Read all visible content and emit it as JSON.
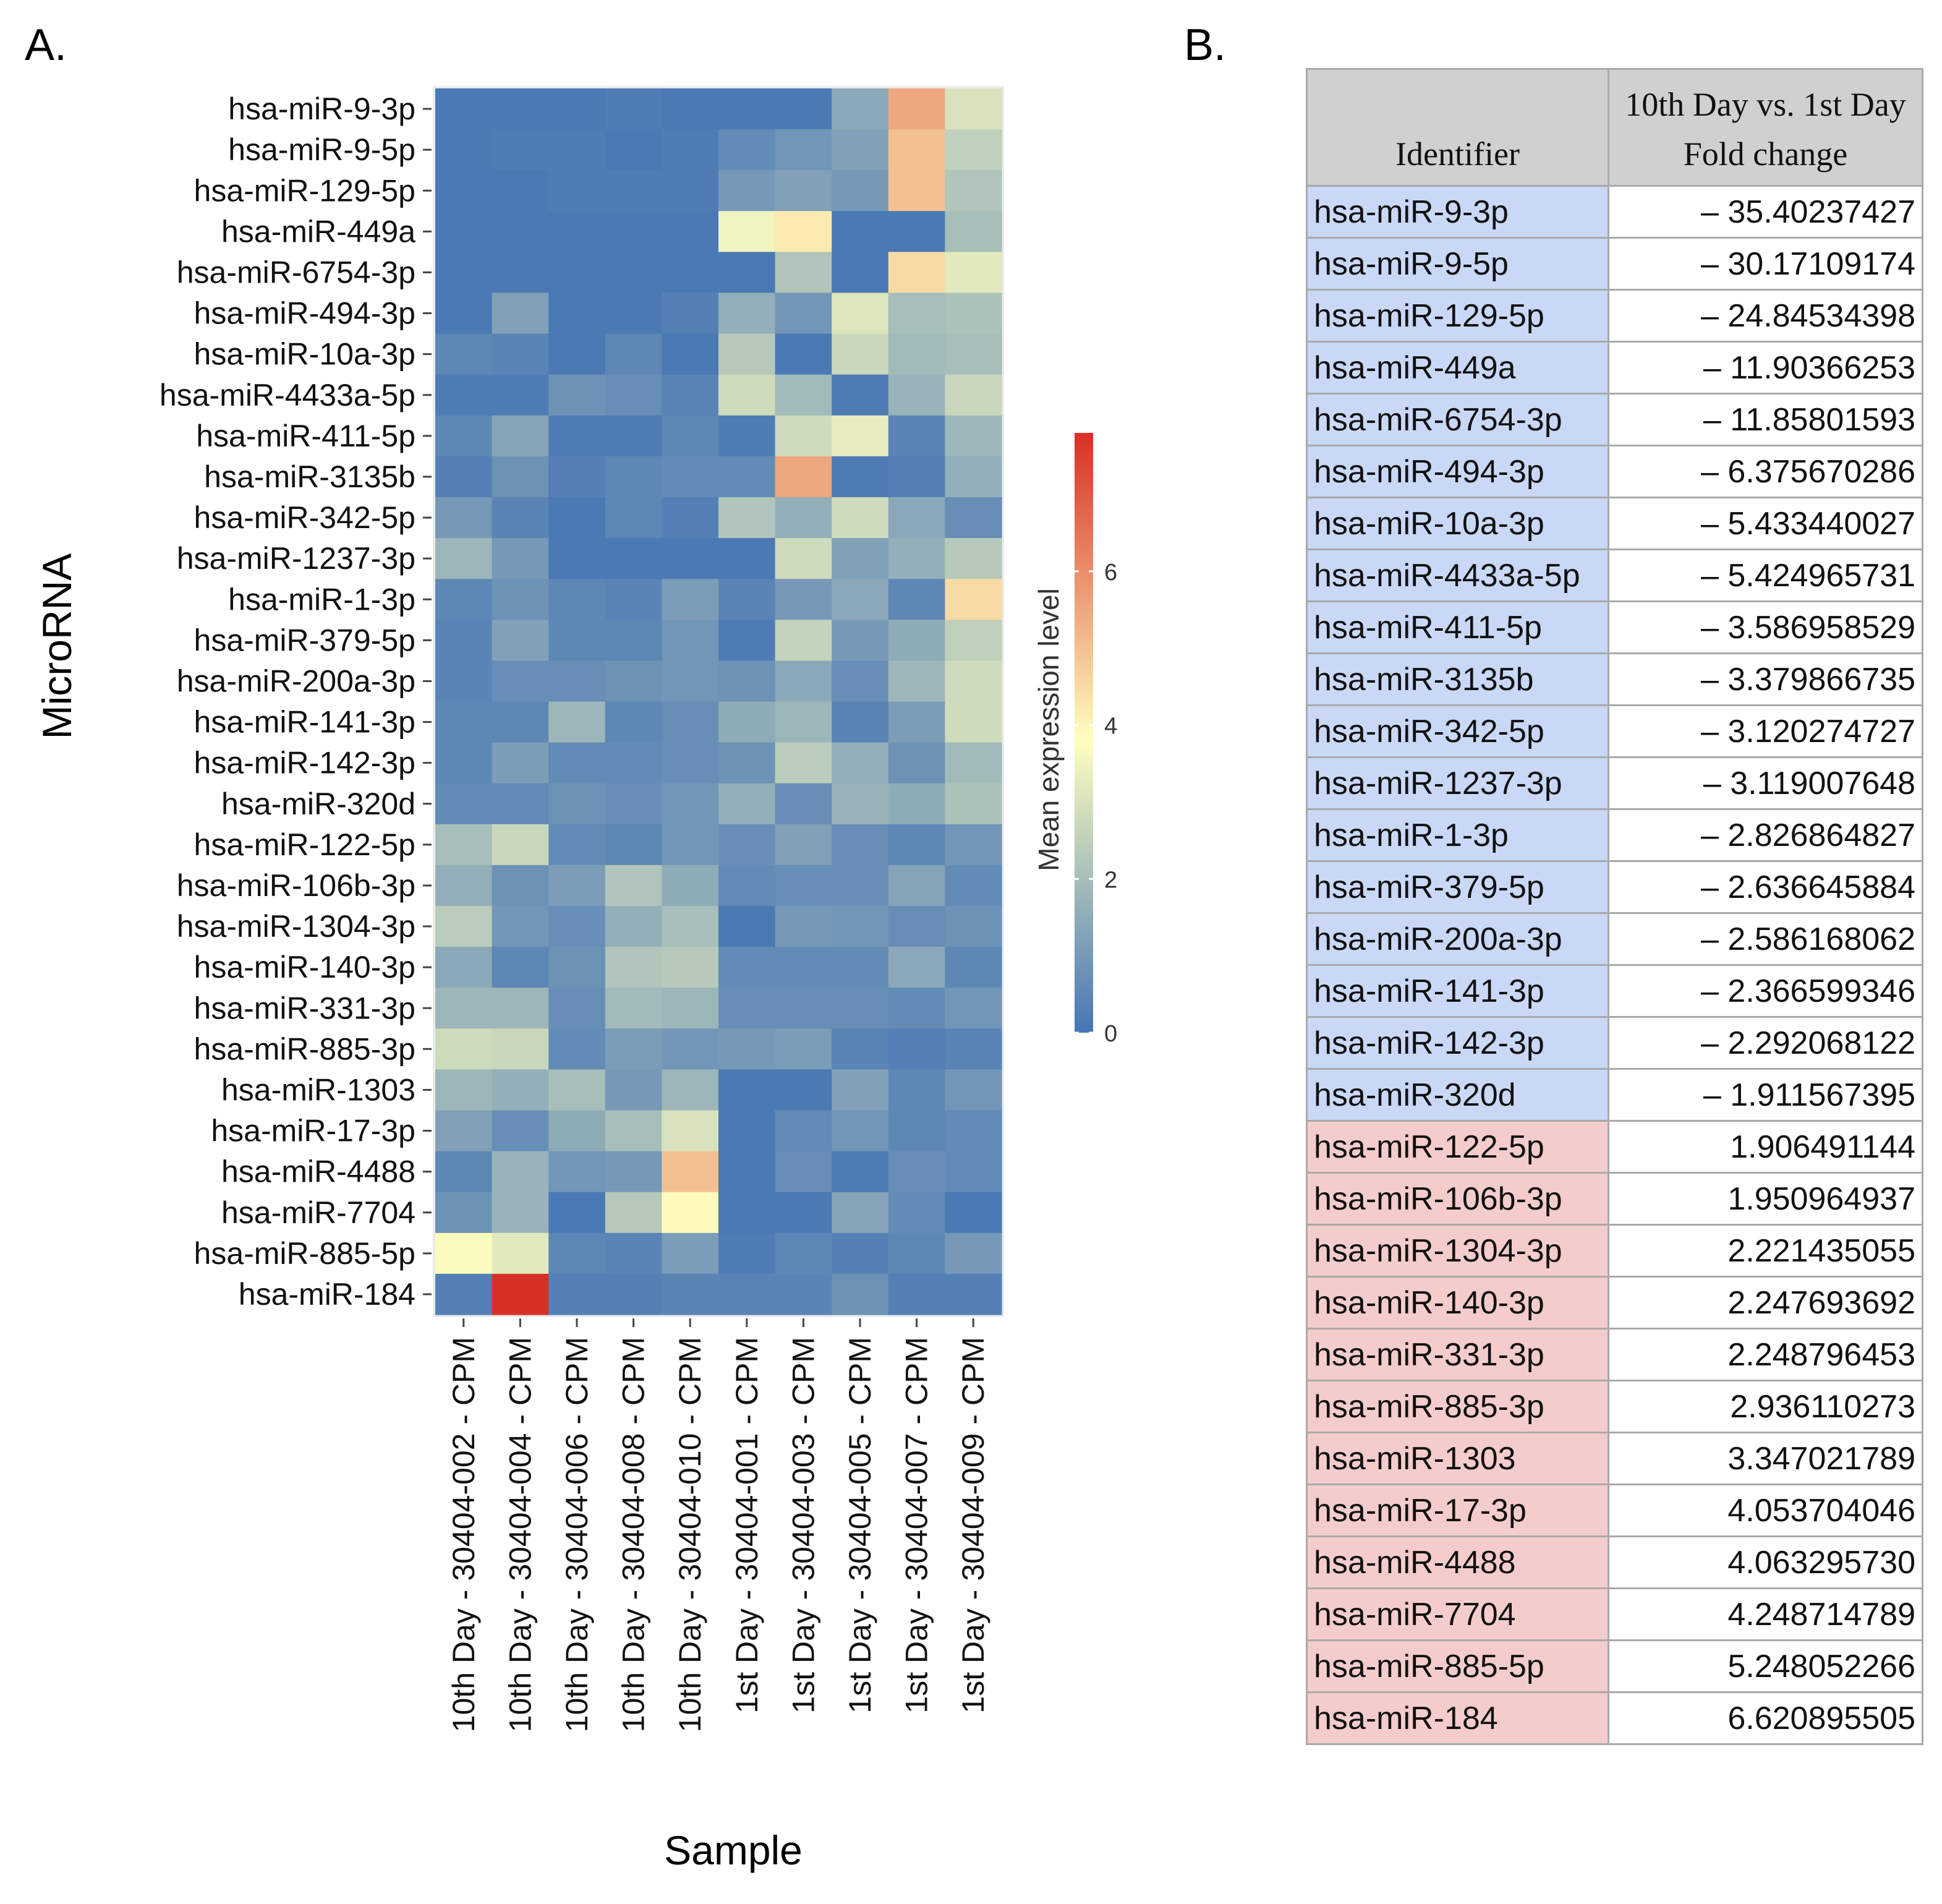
{
  "panel_a_label": "A.",
  "panel_b_label": "B.",
  "colors": {
    "panel_background": "#ebebeb",
    "low": "#4575b4",
    "mid": "#ffffbf",
    "high": "#d73027",
    "down_row": "#c9d8f6",
    "up_row": "#f4cccc",
    "header_bg": "#d0d0d0"
  },
  "chart_data": {
    "type": "heatmap",
    "title": "",
    "xlabel": "Sample",
    "ylabel": "MicroRNA",
    "legend_title": "Mean expression level",
    "legend_position": "right",
    "color_scale": {
      "min": 0,
      "max": 7.8,
      "mid": 3.8,
      "ticks": [
        0,
        2,
        4,
        6
      ]
    },
    "columns": [
      "10th Day - 30404-002 - CPM",
      "10th Day - 30404-004 - CPM",
      "10th Day - 30404-006 - CPM",
      "10th Day - 30404-008 - CPM",
      "10th Day - 30404-010 - CPM",
      "1st Day - 30404-001 - CPM",
      "1st Day - 30404-003 - CPM",
      "1st Day - 30404-005 - CPM",
      "1st Day - 30404-007 - CPM",
      "1st Day - 30404-009 - CPM"
    ],
    "rows": [
      "hsa-miR-9-3p",
      "hsa-miR-9-5p",
      "hsa-miR-129-5p",
      "hsa-miR-449a",
      "hsa-miR-6754-3p",
      "hsa-miR-494-3p",
      "hsa-miR-10a-3p",
      "hsa-miR-4433a-5p",
      "hsa-miR-411-5p",
      "hsa-miR-3135b",
      "hsa-miR-342-5p",
      "hsa-miR-1237-3p",
      "hsa-miR-1-3p",
      "hsa-miR-379-5p",
      "hsa-miR-200a-3p",
      "hsa-miR-141-3p",
      "hsa-miR-142-3p",
      "hsa-miR-320d",
      "hsa-miR-122-5p",
      "hsa-miR-106b-3p",
      "hsa-miR-1304-3p",
      "hsa-miR-140-3p",
      "hsa-miR-331-3p",
      "hsa-miR-885-3p",
      "hsa-miR-1303",
      "hsa-miR-17-3p",
      "hsa-miR-4488",
      "hsa-miR-7704",
      "hsa-miR-885-5p",
      "hsa-miR-184"
    ],
    "values": [
      [
        0.1,
        0.1,
        0.1,
        0.2,
        0.1,
        0.1,
        0.1,
        1.4,
        5.5,
        3.0
      ],
      [
        0.1,
        0.2,
        0.2,
        0.1,
        0.2,
        0.6,
        0.9,
        1.2,
        5.0,
        2.5
      ],
      [
        0.1,
        0.1,
        0.2,
        0.2,
        0.2,
        1.0,
        1.2,
        1.0,
        5.0,
        2.2
      ],
      [
        0.1,
        0.1,
        0.1,
        0.1,
        0.1,
        3.5,
        4.2,
        0.1,
        0.1,
        2.0
      ],
      [
        0.1,
        0.1,
        0.1,
        0.1,
        0.1,
        0.1,
        2.2,
        0.1,
        4.5,
        3.2
      ],
      [
        0.1,
        1.2,
        0.1,
        0.1,
        0.3,
        1.6,
        0.9,
        3.1,
        2.0,
        2.1
      ],
      [
        0.5,
        0.4,
        0.1,
        0.5,
        0.1,
        2.3,
        0.1,
        2.7,
        1.9,
        2.0
      ],
      [
        0.2,
        0.2,
        0.8,
        0.7,
        0.4,
        2.8,
        1.9,
        0.2,
        1.7,
        2.7
      ],
      [
        0.5,
        1.3,
        0.2,
        0.2,
        0.5,
        0.2,
        2.8,
        3.3,
        0.4,
        1.8
      ],
      [
        0.3,
        0.8,
        0.3,
        0.5,
        0.6,
        0.6,
        5.5,
        0.2,
        0.3,
        1.6
      ],
      [
        1.0,
        0.4,
        0.1,
        0.5,
        0.3,
        2.2,
        1.6,
        2.8,
        1.4,
        0.7
      ],
      [
        1.8,
        1.0,
        0.1,
        0.1,
        0.1,
        0.1,
        2.8,
        1.2,
        1.6,
        2.3
      ],
      [
        0.5,
        0.8,
        0.5,
        0.4,
        1.1,
        0.4,
        1.0,
        1.4,
        0.5,
        4.5
      ],
      [
        0.4,
        1.2,
        0.5,
        0.5,
        0.9,
        0.2,
        2.6,
        1.0,
        1.5,
        2.5
      ],
      [
        0.4,
        0.7,
        0.7,
        0.8,
        0.9,
        0.8,
        1.4,
        0.7,
        1.8,
        2.8
      ],
      [
        0.5,
        0.5,
        1.8,
        0.5,
        0.7,
        1.5,
        1.8,
        0.4,
        1.1,
        2.8
      ],
      [
        0.5,
        1.1,
        0.6,
        0.6,
        0.7,
        0.8,
        2.4,
        1.6,
        0.8,
        1.9
      ],
      [
        0.6,
        0.6,
        0.8,
        0.7,
        0.9,
        1.6,
        0.7,
        1.7,
        1.5,
        2.1
      ],
      [
        2.0,
        2.7,
        0.6,
        0.5,
        0.9,
        0.7,
        1.2,
        0.7,
        0.5,
        0.9
      ],
      [
        1.6,
        0.8,
        1.1,
        2.2,
        1.5,
        0.6,
        0.7,
        0.7,
        1.3,
        0.6
      ],
      [
        2.4,
        0.9,
        0.7,
        1.6,
        2.0,
        0.1,
        1.0,
        0.9,
        0.7,
        0.8
      ],
      [
        1.4,
        0.5,
        0.8,
        2.2,
        2.3,
        0.6,
        0.6,
        0.6,
        1.4,
        0.5
      ],
      [
        1.8,
        1.8,
        0.7,
        1.9,
        1.8,
        0.7,
        0.7,
        0.7,
        0.6,
        0.9
      ],
      [
        2.8,
        2.7,
        0.6,
        1.1,
        0.9,
        1.0,
        1.1,
        0.4,
        0.3,
        0.4
      ],
      [
        1.8,
        1.6,
        2.0,
        1.0,
        1.8,
        0.1,
        0.1,
        1.2,
        0.5,
        0.9
      ],
      [
        1.2,
        0.7,
        1.5,
        2.0,
        3.0,
        0.1,
        0.6,
        0.9,
        0.5,
        0.6
      ],
      [
        0.5,
        1.7,
        0.9,
        1.0,
        5.0,
        0.1,
        0.7,
        0.2,
        0.7,
        0.6
      ],
      [
        0.8,
        1.7,
        0.1,
        2.3,
        3.9,
        0.1,
        0.1,
        1.3,
        0.6,
        0.1
      ],
      [
        3.7,
        3.2,
        0.5,
        0.4,
        1.1,
        0.2,
        0.5,
        0.3,
        0.5,
        1.0
      ],
      [
        0.3,
        7.8,
        0.3,
        0.3,
        0.4,
        0.4,
        0.4,
        0.8,
        0.3,
        0.3
      ]
    ]
  },
  "table": {
    "headers": [
      "Identifier",
      "10th Day vs. 1st Day Fold change"
    ],
    "rows": [
      {
        "id": "hsa-miR-9-3p",
        "fc": "– 35.40237427",
        "dir": "down"
      },
      {
        "id": "hsa-miR-9-5p",
        "fc": "– 30.17109174",
        "dir": "down"
      },
      {
        "id": "hsa-miR-129-5p",
        "fc": "– 24.84534398",
        "dir": "down"
      },
      {
        "id": "hsa-miR-449a",
        "fc": "– 11.90366253",
        "dir": "down"
      },
      {
        "id": "hsa-miR-6754-3p",
        "fc": "– 11.85801593",
        "dir": "down"
      },
      {
        "id": "hsa-miR-494-3p",
        "fc": "– 6.375670286",
        "dir": "down"
      },
      {
        "id": "hsa-miR-10a-3p",
        "fc": "– 5.433440027",
        "dir": "down"
      },
      {
        "id": "hsa-miR-4433a-5p",
        "fc": "– 5.424965731",
        "dir": "down"
      },
      {
        "id": "hsa-miR-411-5p",
        "fc": "– 3.586958529",
        "dir": "down"
      },
      {
        "id": "hsa-miR-3135b",
        "fc": "– 3.379866735",
        "dir": "down"
      },
      {
        "id": "hsa-miR-342-5p",
        "fc": "– 3.120274727",
        "dir": "down"
      },
      {
        "id": "hsa-miR-1237-3p",
        "fc": "– 3.119007648",
        "dir": "down"
      },
      {
        "id": "hsa-miR-1-3p",
        "fc": "– 2.826864827",
        "dir": "down"
      },
      {
        "id": "hsa-miR-379-5p",
        "fc": "– 2.636645884",
        "dir": "down"
      },
      {
        "id": "hsa-miR-200a-3p",
        "fc": "– 2.586168062",
        "dir": "down"
      },
      {
        "id": "hsa-miR-141-3p",
        "fc": "– 2.366599346",
        "dir": "down"
      },
      {
        "id": "hsa-miR-142-3p",
        "fc": "– 2.292068122",
        "dir": "down"
      },
      {
        "id": "hsa-miR-320d",
        "fc": "– 1.911567395",
        "dir": "down"
      },
      {
        "id": "hsa-miR-122-5p",
        "fc": "1.906491144",
        "dir": "up"
      },
      {
        "id": "hsa-miR-106b-3p",
        "fc": "1.950964937",
        "dir": "up"
      },
      {
        "id": "hsa-miR-1304-3p",
        "fc": "2.221435055",
        "dir": "up"
      },
      {
        "id": "hsa-miR-140-3p",
        "fc": "2.247693692",
        "dir": "up"
      },
      {
        "id": "hsa-miR-331-3p",
        "fc": "2.248796453",
        "dir": "up"
      },
      {
        "id": "hsa-miR-885-3p",
        "fc": "2.936110273",
        "dir": "up"
      },
      {
        "id": "hsa-miR-1303",
        "fc": "3.347021789",
        "dir": "up"
      },
      {
        "id": "hsa-miR-17-3p",
        "fc": "4.053704046",
        "dir": "up"
      },
      {
        "id": "hsa-miR-4488",
        "fc": "4.063295730",
        "dir": "up"
      },
      {
        "id": "hsa-miR-7704",
        "fc": "4.248714789",
        "dir": "up"
      },
      {
        "id": "hsa-miR-885-5p",
        "fc": "5.248052266",
        "dir": "up"
      },
      {
        "id": "hsa-miR-184",
        "fc": "6.620895505",
        "dir": "up"
      }
    ]
  }
}
